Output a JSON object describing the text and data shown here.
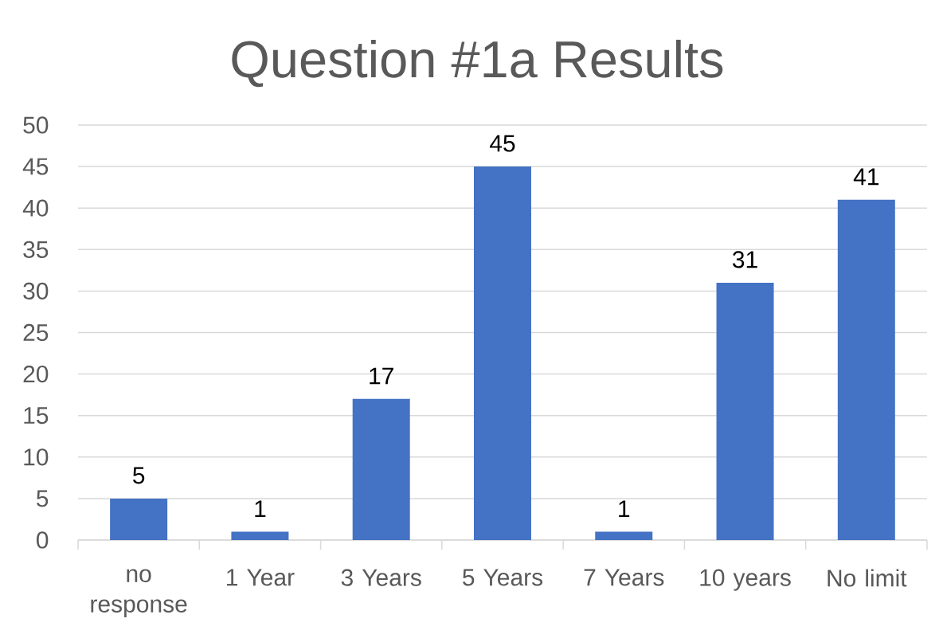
{
  "chart_data": {
    "type": "bar",
    "title": "Question #1a Results",
    "categories": [
      "no response",
      "1 Year",
      "3 Years",
      "5 Years",
      "7 Years",
      "10 years",
      "No limit"
    ],
    "values": [
      5,
      1,
      17,
      45,
      1,
      31,
      41
    ],
    "color": "#4472c4",
    "ylim": [
      0,
      50
    ],
    "yticks": [
      0,
      5,
      10,
      15,
      20,
      25,
      30,
      35,
      40,
      45,
      50
    ],
    "grid": "y",
    "data_labels": true
  }
}
